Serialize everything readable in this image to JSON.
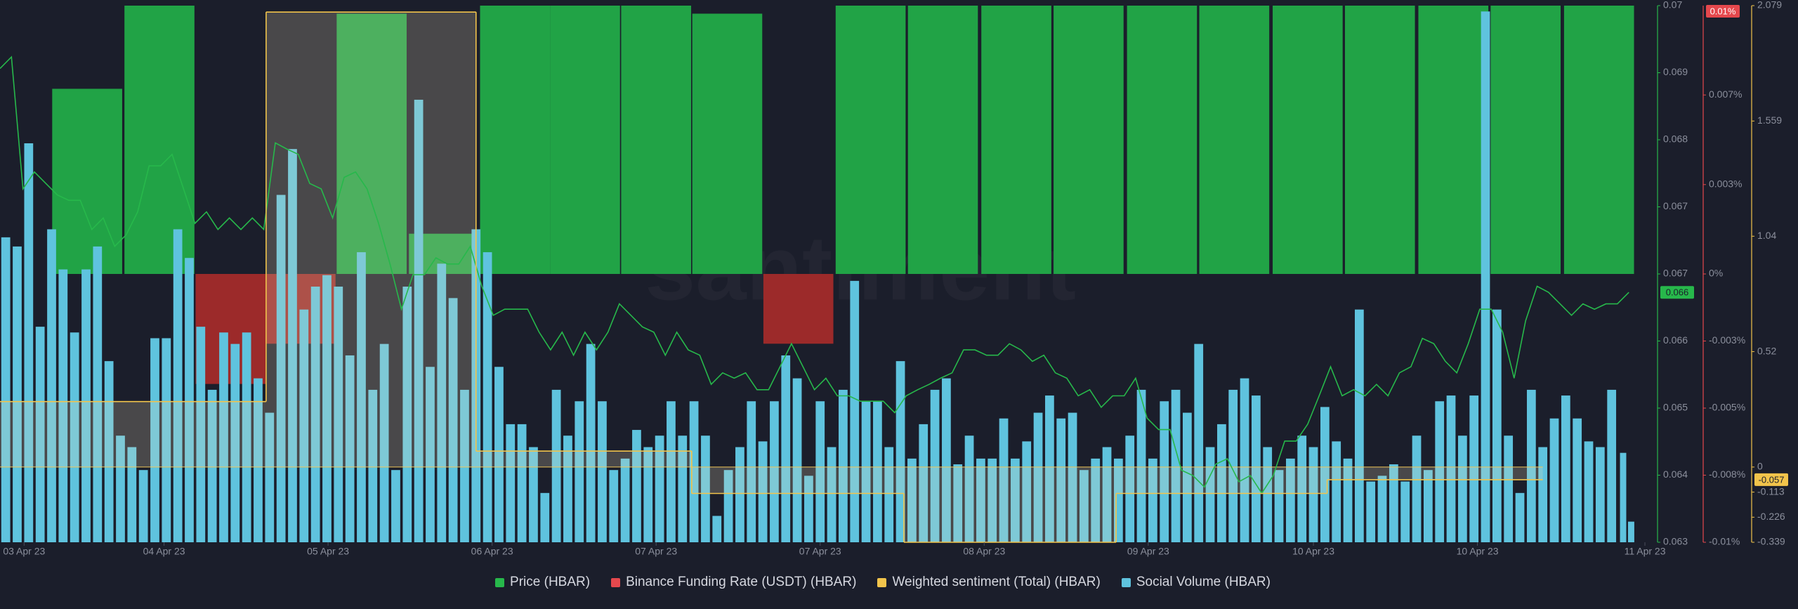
{
  "chart_data": {
    "type": "combo",
    "watermark": "santiment",
    "xlim": [
      0,
      1445
    ],
    "xticks": [
      {
        "value": 21,
        "label": "03 Apr 23"
      },
      {
        "value": 143,
        "label": "04 Apr 23"
      },
      {
        "value": 286,
        "label": "05 Apr 23"
      },
      {
        "value": 429,
        "label": "06 Apr 23"
      },
      {
        "value": 572,
        "label": "07 Apr 23"
      },
      {
        "value": 715,
        "label": "07 Apr 23"
      },
      {
        "value": 858,
        "label": "08 Apr 23"
      },
      {
        "value": 1001,
        "label": "09 Apr 23"
      },
      {
        "value": 1145,
        "label": "10 Apr 23"
      },
      {
        "value": 1288,
        "label": "10 Apr 23"
      },
      {
        "value": 1434,
        "label": "11 Apr 23"
      }
    ],
    "ylim": [
      0.063,
      0.07
    ],
    "yticks": [
      0.063,
      {
        "value": 0.063875,
        "label": "0.064"
      },
      {
        "value": 0.06475,
        "label": "0.065"
      },
      {
        "value": 0.065625,
        "label": "0.066"
      },
      {
        "value": 0.0665,
        "label": "0.067"
      },
      {
        "value": 0.067375,
        "label": "0.067"
      },
      {
        "value": 0.06825,
        "label": "0.068"
      },
      {
        "value": 0.069125,
        "label": "0.069"
      },
      0.07
    ],
    "y2lim": [
      -0.01,
      0.01
    ],
    "y2ticks": [
      {
        "value": -0.01,
        "label": "-0.01%"
      },
      {
        "value": -0.0075,
        "label": "-0.008%"
      },
      {
        "value": -0.005,
        "label": "-0.005%"
      },
      {
        "value": -0.0025,
        "label": "-0.003%"
      },
      {
        "value": 0,
        "label": "0%"
      },
      {
        "value": 0.00333,
        "label": "0.003%"
      },
      {
        "value": 0.00667,
        "label": "0.007%"
      }
    ],
    "y3lim": [
      -0.339,
      2.079
    ],
    "y3ticks": [
      -0.339,
      -0.226,
      -0.113,
      0,
      0.52,
      1.04,
      1.559,
      2.079
    ],
    "series": [
      {
        "name": "Price (HBAR)",
        "type": "line",
        "axis": "y",
        "color": "#27b84b",
        "badge": "0.066",
        "x": [
          0,
          10,
          20,
          30,
          40,
          50,
          60,
          70,
          80,
          90,
          100,
          110,
          120,
          130,
          140,
          150,
          160,
          170,
          180,
          190,
          200,
          210,
          220,
          230,
          240,
          250,
          260,
          270,
          280,
          290,
          300,
          310,
          320,
          330,
          340,
          350,
          360,
          370,
          380,
          390,
          400,
          410,
          420,
          430,
          440,
          450,
          460,
          470,
          480,
          490,
          500,
          510,
          520,
          530,
          540,
          550,
          560,
          570,
          580,
          590,
          600,
          610,
          620,
          630,
          640,
          650,
          660,
          670,
          680,
          690,
          700,
          710,
          720,
          730,
          740,
          750,
          760,
          770,
          780,
          790,
          800,
          810,
          820,
          830,
          840,
          850,
          860,
          870,
          880,
          890,
          900,
          910,
          920,
          930,
          940,
          950,
          960,
          970,
          980,
          990,
          1000,
          1010,
          1020,
          1030,
          1040,
          1050,
          1060,
          1070,
          1080,
          1090,
          1100,
          1110,
          1120,
          1130,
          1140,
          1150,
          1160,
          1170,
          1180,
          1190,
          1200,
          1210,
          1220,
          1230,
          1240,
          1250,
          1260,
          1270,
          1280,
          1290,
          1300,
          1310,
          1320,
          1330,
          1340,
          1350,
          1360,
          1370,
          1380,
          1390,
          1400,
          1410,
          1420
        ],
        "values": [
          0.06918,
          0.06933,
          0.06761,
          0.06783,
          0.06768,
          0.06753,
          0.06746,
          0.06746,
          0.06708,
          0.06723,
          0.06686,
          0.06701,
          0.06731,
          0.06791,
          0.06791,
          0.06806,
          0.06761,
          0.06716,
          0.06731,
          0.06708,
          0.06723,
          0.06708,
          0.06723,
          0.06708,
          0.06821,
          0.06813,
          0.06806,
          0.06768,
          0.06761,
          0.06723,
          0.06776,
          0.06783,
          0.06761,
          0.06716,
          0.06663,
          0.06604,
          0.06649,
          0.06649,
          0.06671,
          0.06663,
          0.06663,
          0.06686,
          0.06634,
          0.06596,
          0.06604,
          0.06604,
          0.06604,
          0.06574,
          0.06551,
          0.06574,
          0.06544,
          0.06574,
          0.06551,
          0.06574,
          0.06611,
          0.06596,
          0.06581,
          0.06574,
          0.06544,
          0.06574,
          0.06551,
          0.06544,
          0.06506,
          0.06521,
          0.06514,
          0.06521,
          0.06499,
          0.06499,
          0.06529,
          0.06559,
          0.06529,
          0.06499,
          0.06514,
          0.06491,
          0.06491,
          0.06484,
          0.06484,
          0.06484,
          0.06469,
          0.06491,
          0.06499,
          0.06506,
          0.06514,
          0.06521,
          0.06551,
          0.06551,
          0.06544,
          0.06544,
          0.06559,
          0.06551,
          0.06536,
          0.06544,
          0.06521,
          0.06514,
          0.06491,
          0.06499,
          0.06476,
          0.06491,
          0.06491,
          0.06514,
          0.06462,
          0.06447,
          0.06447,
          0.06394,
          0.06387,
          0.06372,
          0.06402,
          0.06409,
          0.06379,
          0.06387,
          0.06364,
          0.06387,
          0.06432,
          0.06432,
          0.06454,
          0.06491,
          0.06529,
          0.06491,
          0.06499,
          0.06491,
          0.06506,
          0.06491,
          0.06521,
          0.06529,
          0.06566,
          0.06559,
          0.06536,
          0.06521,
          0.06559,
          0.06604,
          0.06604,
          0.06574,
          0.06514,
          0.06589,
          0.06634,
          0.06626,
          0.06611,
          0.06596,
          0.06611,
          0.06604,
          0.06611,
          0.06611,
          0.06626
        ]
      },
      {
        "name": "Binance Funding Rate (USDT) (HBAR)",
        "type": "bar",
        "axis": "y2",
        "color": "#e5484d",
        "positive_color": "#21a346",
        "negative_color": "#9c2a2a",
        "badge": "0.01%",
        "x": [
          76,
          139,
          201,
          262,
          324,
          387,
          449,
          510,
          572,
          634,
          696,
          759,
          822,
          886,
          949,
          1013,
          1076,
          1140,
          1203,
          1267,
          1330,
          1394
        ],
        "values": [
          0.0069,
          0.01,
          -0.0041,
          -0.0026,
          0.0097,
          0.0015,
          0.01,
          0.01,
          0.01,
          0.0097,
          -0.0026,
          0.01,
          0.01,
          0.01,
          0.01,
          0.01,
          0.01,
          0.01,
          0.01,
          0.01,
          0.01,
          0.01
        ]
      },
      {
        "name": "Weighted sentiment (Total) (HBAR)",
        "type": "step",
        "axis": "y3",
        "color": "#f2c44b",
        "fill": "rgba(235,222,185,0.22)",
        "badge": "-0.057",
        "x": [
          0,
          232,
          415,
          603,
          788,
          973,
          1157,
          1345
        ],
        "values": [
          0.295,
          2.05,
          0.072,
          -0.119,
          -0.339,
          -0.119,
          -0.057,
          -0.057
        ]
      },
      {
        "name": "Social Volume (HBAR)",
        "type": "bar",
        "axis": "y4",
        "color": "#5fc3de",
        "x": [
          5,
          15,
          25,
          35,
          45,
          55,
          65,
          75,
          85,
          95,
          105,
          115,
          125,
          135,
          145,
          155,
          165,
          175,
          185,
          195,
          205,
          215,
          225,
          235,
          245,
          255,
          265,
          275,
          285,
          295,
          305,
          315,
          325,
          335,
          345,
          355,
          365,
          375,
          385,
          395,
          405,
          415,
          425,
          435,
          445,
          455,
          465,
          475,
          485,
          495,
          505,
          515,
          525,
          535,
          545,
          555,
          565,
          575,
          585,
          595,
          605,
          615,
          625,
          635,
          645,
          655,
          665,
          675,
          685,
          695,
          705,
          715,
          725,
          735,
          745,
          755,
          765,
          775,
          785,
          795,
          805,
          815,
          825,
          835,
          845,
          855,
          865,
          875,
          885,
          895,
          905,
          915,
          925,
          935,
          945,
          955,
          965,
          975,
          985,
          995,
          1005,
          1015,
          1025,
          1035,
          1045,
          1055,
          1065,
          1075,
          1085,
          1095,
          1105,
          1115,
          1125,
          1135,
          1145,
          1155,
          1165,
          1175,
          1185,
          1195,
          1205,
          1215,
          1225,
          1235,
          1245,
          1255,
          1265,
          1275,
          1285,
          1295,
          1305,
          1315,
          1325,
          1335,
          1345,
          1355,
          1365,
          1375,
          1385,
          1395,
          1405,
          1415,
          1422
        ],
        "values": [
          266,
          258,
          348,
          188,
          273,
          238,
          183,
          238,
          258,
          158,
          93,
          83,
          63,
          178,
          178,
          273,
          248,
          188,
          133,
          183,
          173,
          183,
          143,
          113,
          303,
          343,
          203,
          223,
          233,
          223,
          163,
          253,
          133,
          173,
          63,
          223,
          386,
          153,
          243,
          213,
          133,
          273,
          253,
          153,
          103,
          103,
          83,
          43,
          133,
          93,
          123,
          173,
          123,
          63,
          73,
          98,
          83,
          93,
          123,
          93,
          123,
          93,
          23,
          63,
          83,
          123,
          88,
          123,
          163,
          143,
          58,
          123,
          83,
          133,
          228,
          123,
          123,
          83,
          158,
          73,
          103,
          133,
          143,
          68,
          93,
          73,
          73,
          108,
          73,
          88,
          113,
          128,
          108,
          113,
          63,
          73,
          83,
          73,
          93,
          133,
          73,
          123,
          133,
          113,
          173,
          83,
          103,
          133,
          143,
          128,
          83,
          63,
          73,
          93,
          83,
          118,
          88,
          73,
          203,
          53,
          58,
          68,
          53,
          93,
          63,
          123,
          128,
          93,
          128,
          463,
          203,
          93,
          43,
          133,
          83,
          108,
          128,
          108,
          88,
          83,
          133,
          78,
          18
        ]
      }
    ]
  }
}
